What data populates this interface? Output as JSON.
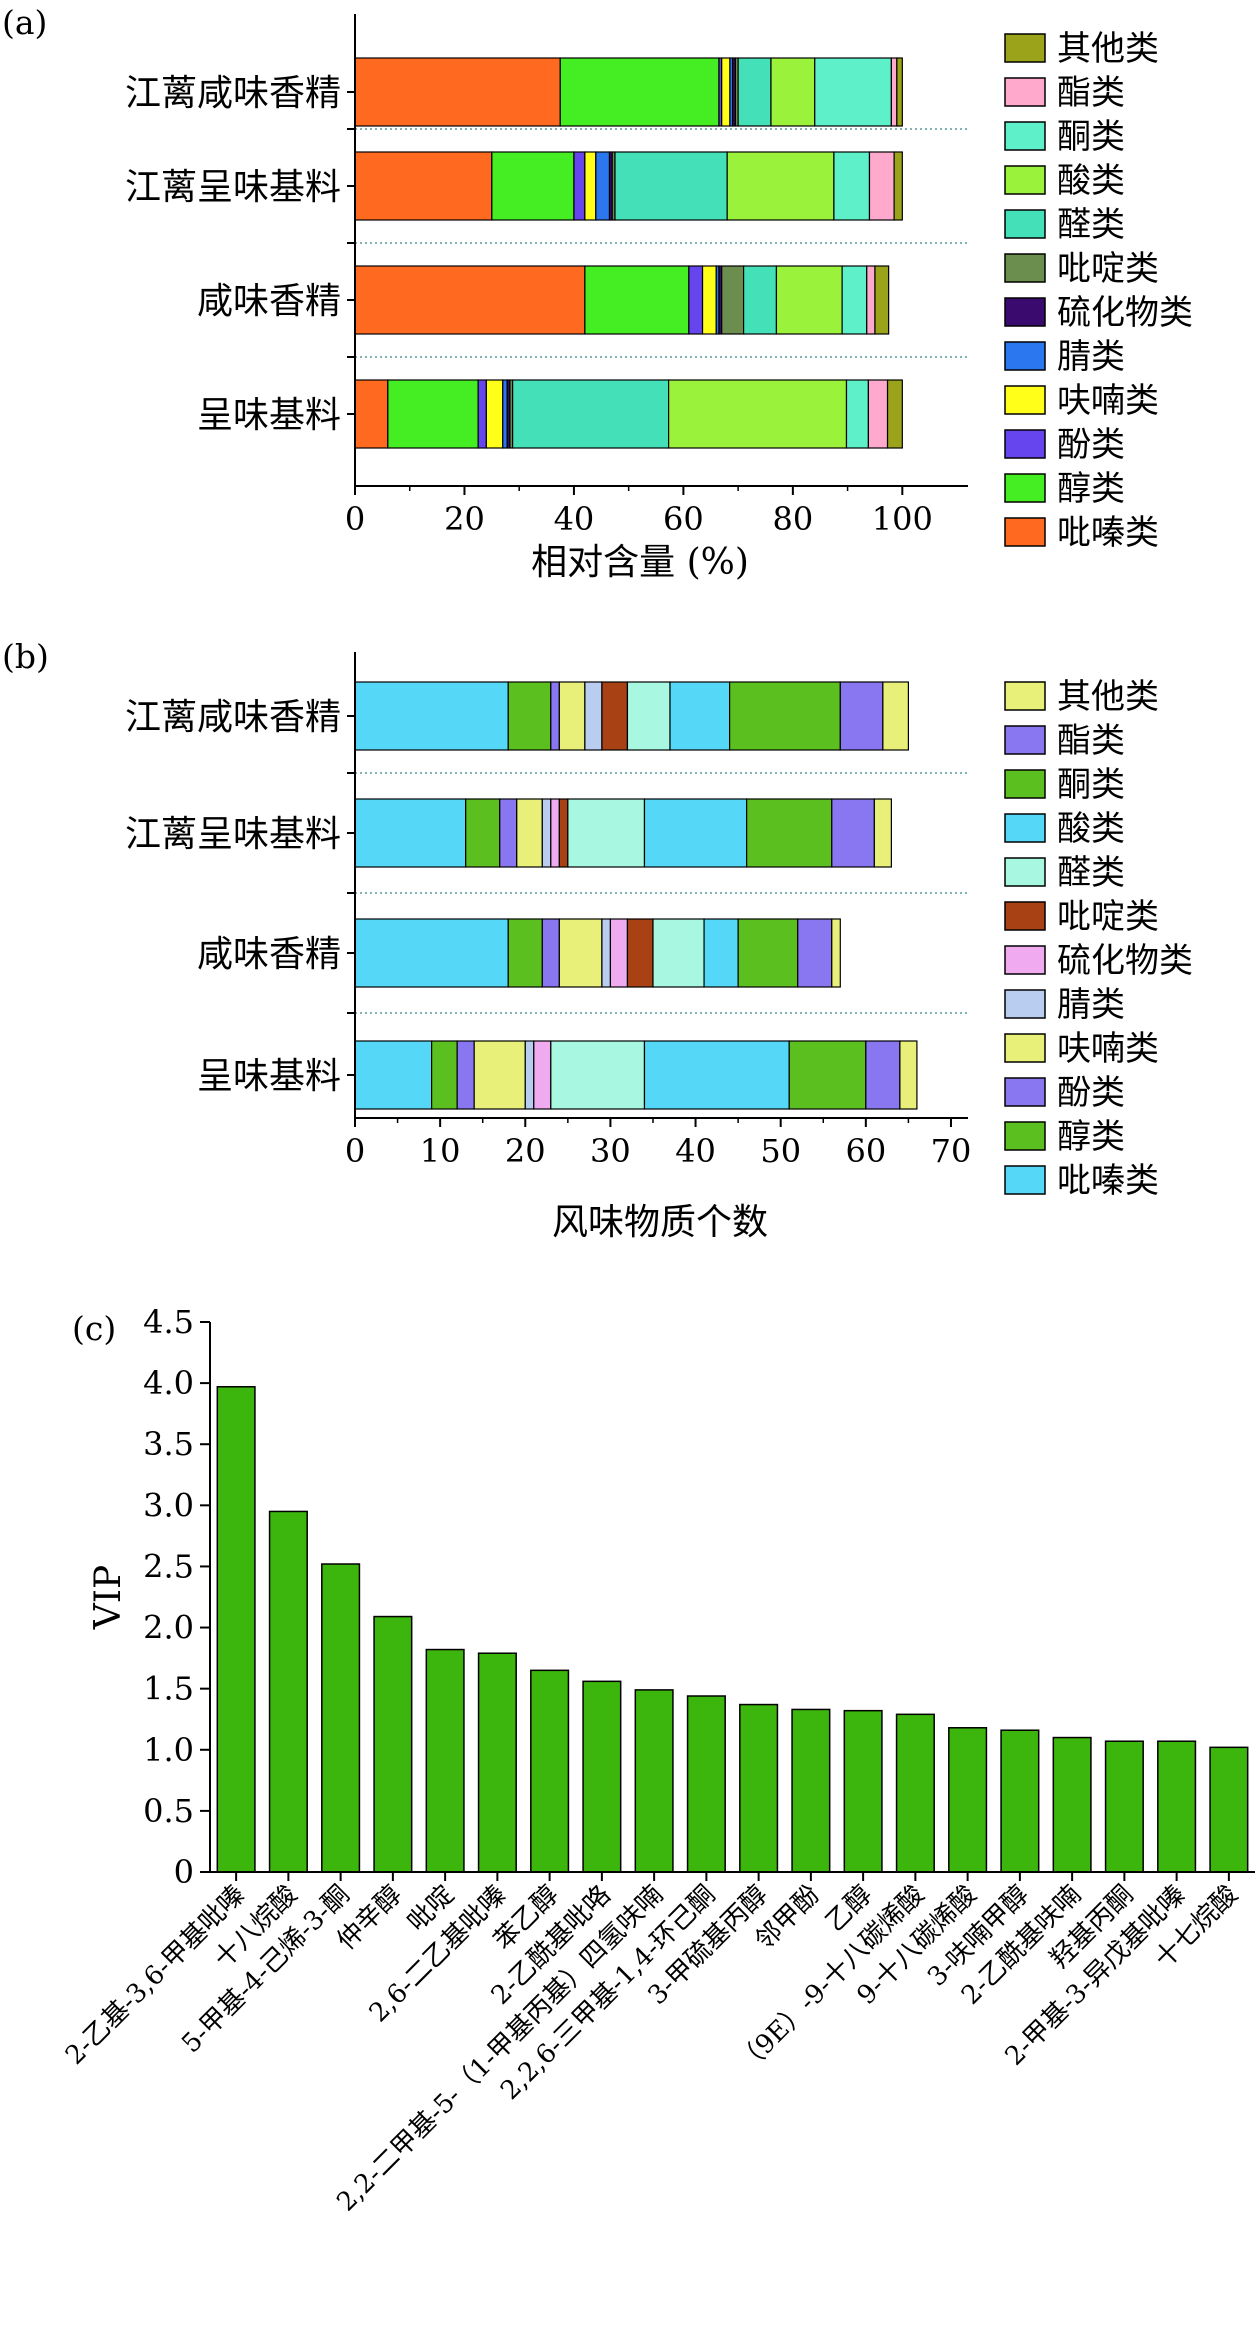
{
  "panels": {
    "a": {
      "label": "(a)"
    },
    "b": {
      "label": "(b)"
    },
    "c": {
      "label": "(c)"
    }
  },
  "chart_data": [
    {
      "id": "a",
      "type": "bar",
      "orientation": "horizontal",
      "stacked": true,
      "xlabel": "相对含量 (%)",
      "ylabel": "",
      "xlim": [
        0,
        112
      ],
      "xticks": [
        0,
        20,
        40,
        60,
        80,
        100
      ],
      "categories": [
        "江蓠咸味香精",
        "江蓠呈味基料",
        "咸味香精",
        "呈味基料"
      ],
      "legend_position": "right",
      "series": [
        {
          "name": "吡嗪类",
          "color": "#ff6a20",
          "values": [
            37.5,
            25,
            42,
            6
          ]
        },
        {
          "name": "醇类",
          "color": "#44ee22",
          "values": [
            29,
            15,
            19,
            16.5
          ]
        },
        {
          "name": "酚类",
          "color": "#6644ee",
          "values": [
            0.5,
            2,
            2.5,
            1.5
          ]
        },
        {
          "name": "呋喃类",
          "color": "#ffff1a",
          "values": [
            1.5,
            2,
            2.5,
            3
          ]
        },
        {
          "name": "腈类",
          "color": "#2a77f0",
          "values": [
            0.5,
            2.5,
            0.5,
            0.8
          ]
        },
        {
          "name": "硫化物类",
          "color": "#3a0a6e",
          "values": [
            0.5,
            0.5,
            0.5,
            0.5
          ]
        },
        {
          "name": "吡啶类",
          "color": "#6b8e4e",
          "values": [
            0.5,
            0.5,
            4,
            0.5
          ]
        },
        {
          "name": "醛类",
          "color": "#44e0b8",
          "values": [
            6,
            20.5,
            6,
            28.5
          ]
        },
        {
          "name": "酸类",
          "color": "#9bf23a",
          "values": [
            8,
            19.5,
            12,
            32.5
          ]
        },
        {
          "name": "酮类",
          "color": "#5ef0c8",
          "values": [
            14,
            6.5,
            4.5,
            4
          ]
        },
        {
          "name": "酯类",
          "color": "#ffaacc",
          "values": [
            1,
            4.5,
            1.5,
            3.5
          ]
        },
        {
          "name": "其他类",
          "color": "#9aa31a",
          "values": [
            1,
            1.5,
            2.5,
            2.7
          ]
        }
      ]
    },
    {
      "id": "b",
      "type": "bar",
      "orientation": "horizontal",
      "stacked": true,
      "xlabel": "风味物质个数",
      "ylabel": "",
      "xlim": [
        0,
        72
      ],
      "xticks": [
        0,
        10,
        20,
        30,
        40,
        50,
        60,
        70
      ],
      "categories": [
        "江蓠咸味香精",
        "江蓠呈味基料",
        "咸味香精",
        "呈味基料"
      ],
      "legend_position": "right",
      "series": [
        {
          "name": "吡嗪类",
          "color": "#55d8f8",
          "values": [
            18,
            13,
            18,
            9
          ]
        },
        {
          "name": "醇类",
          "color": "#5cbf20",
          "values": [
            5,
            4,
            4,
            3
          ]
        },
        {
          "name": "酚类",
          "color": "#8877f0",
          "values": [
            1,
            2,
            2,
            2
          ]
        },
        {
          "name": "呋喃类",
          "color": "#e8f07a",
          "values": [
            3,
            3,
            5,
            6
          ]
        },
        {
          "name": "腈类",
          "color": "#b8cdf0",
          "values": [
            2,
            1,
            1,
            1
          ]
        },
        {
          "name": "硫化物类",
          "color": "#f0aaf0",
          "values": [
            0,
            1,
            2,
            2
          ]
        },
        {
          "name": "吡啶类",
          "color": "#a84215",
          "values": [
            3,
            1,
            3,
            0
          ]
        },
        {
          "name": "醛类",
          "color": "#a8f7e0",
          "values": [
            5,
            9,
            6,
            11
          ]
        },
        {
          "name": "酸类",
          "color": "#55d8f8",
          "values": [
            7,
            12,
            4,
            17
          ]
        },
        {
          "name": "酮类",
          "color": "#5cbf20",
          "values": [
            13,
            10,
            7,
            9
          ]
        },
        {
          "name": "酯类",
          "color": "#8877f0",
          "values": [
            5,
            5,
            4,
            4
          ]
        },
        {
          "name": "其他类",
          "color": "#e8f07a",
          "values": [
            3,
            2,
            1,
            2
          ]
        }
      ]
    },
    {
      "id": "c",
      "type": "bar",
      "orientation": "vertical",
      "xlabel": "",
      "ylabel": "VIP",
      "ylim": [
        0,
        4.5
      ],
      "yticks": [
        "0",
        "0.5",
        "1.0",
        "1.5",
        "2.0",
        "2.5",
        "3.0",
        "3.5",
        "4.0",
        "4.5"
      ],
      "bar_color": "#3cb50c",
      "categories": [
        "2-乙基-3,6-甲基吡嗪",
        "十八烷酸",
        "5-甲基-4-己烯-3-酮",
        "仲辛醇",
        "吡啶",
        "2,6-二乙基吡嗪",
        "苯乙醇",
        "2-乙酰基吡咯",
        "2,2-二甲基-5-（1-甲基丙基）四氢呋喃",
        "2,2,6-三甲基-1,4-环己酮",
        "3-甲硫基丙醇",
        "邻甲酚",
        "乙醇",
        "（9E）-9-十八碳烯酸",
        "9-十八碳烯酸",
        "3-呋喃甲醇",
        "2-乙酰基呋喃",
        "羟基丙酮",
        "2-甲基-3-异戊基吡嗪",
        "十七烷酸"
      ],
      "values": [
        3.97,
        2.95,
        2.52,
        2.09,
        1.82,
        1.79,
        1.65,
        1.56,
        1.49,
        1.44,
        1.37,
        1.33,
        1.32,
        1.29,
        1.18,
        1.16,
        1.1,
        1.07,
        1.07,
        1.02
      ]
    }
  ]
}
